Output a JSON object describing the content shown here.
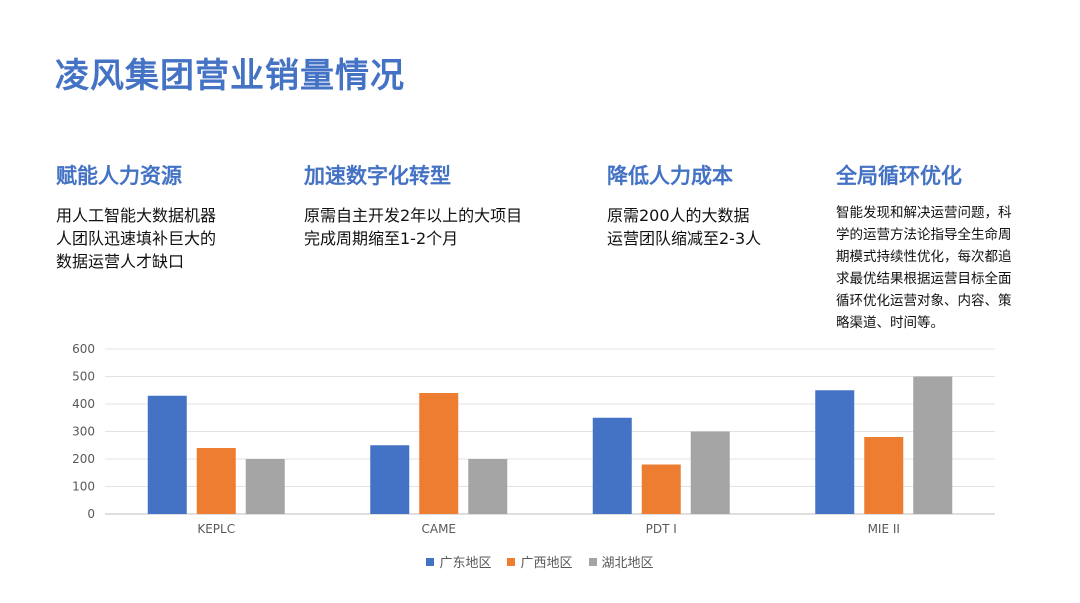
{
  "title": "凌风集团营业销量情况",
  "features": [
    {
      "heading": "赋能人力资源",
      "lines": [
        "用人工智能大数据机器",
        "人团队迅速填补巨大的",
        "数据运营人才缺口"
      ]
    },
    {
      "heading": "加速数字化转型",
      "lines": [
        "原需自主开发2年以上的大项目",
        "完成周期缩至1-2个月"
      ]
    },
    {
      "heading": "降低人力成本",
      "lines": [
        "原需200人的大数据",
        "运营团队缩减至2-3人"
      ]
    },
    {
      "heading": "全局循环优化",
      "lines": [
        "智能发现和解决运营问题，科",
        "学的运营方法论指导全生命周",
        "期模式持续性优化，每次都追",
        "求最优结果根据运营目标全面",
        "循环优化运营对象、内容、策",
        "略渠道、时间等。"
      ]
    }
  ],
  "chart_data": {
    "type": "bar",
    "categories": [
      "KEPLC",
      "CAME",
      "PDT I",
      "MIE II"
    ],
    "series": [
      {
        "name": "广东地区",
        "values": [
          430,
          250,
          350,
          450
        ],
        "color": "#4472C4"
      },
      {
        "name": "广西地区",
        "values": [
          240,
          440,
          180,
          280
        ],
        "color": "#ED7D31"
      },
      {
        "name": "湖北地区",
        "values": [
          200,
          200,
          300,
          500
        ],
        "color": "#A5A5A5"
      }
    ],
    "ylim": [
      0,
      600
    ],
    "yticks": [
      0,
      100,
      200,
      300,
      400,
      500,
      600
    ],
    "grid": true,
    "legend": "bottom"
  }
}
